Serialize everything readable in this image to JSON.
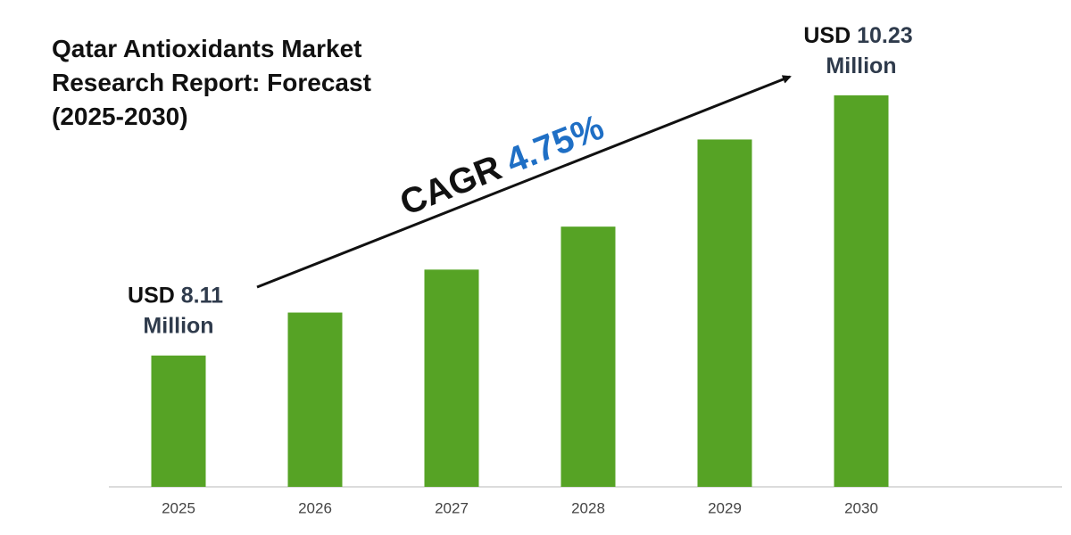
{
  "chart_data": {
    "type": "bar",
    "title": "Qatar Antioxidants Market Research Report: Forecast (2025-2030)",
    "categories": [
      "2025",
      "2026",
      "2027",
      "2028",
      "2029",
      "2030"
    ],
    "values": [
      8.11,
      8.46,
      8.81,
      9.16,
      9.87,
      10.23
    ],
    "value_labels": [
      "USD 8.11 Million",
      null,
      null,
      null,
      null,
      "USD 10.23 Million"
    ],
    "color": "#56a325",
    "ylim": [
      7.04,
      10.28
    ],
    "annotation": {
      "label": "CAGR",
      "value": "4.75%"
    }
  }
}
